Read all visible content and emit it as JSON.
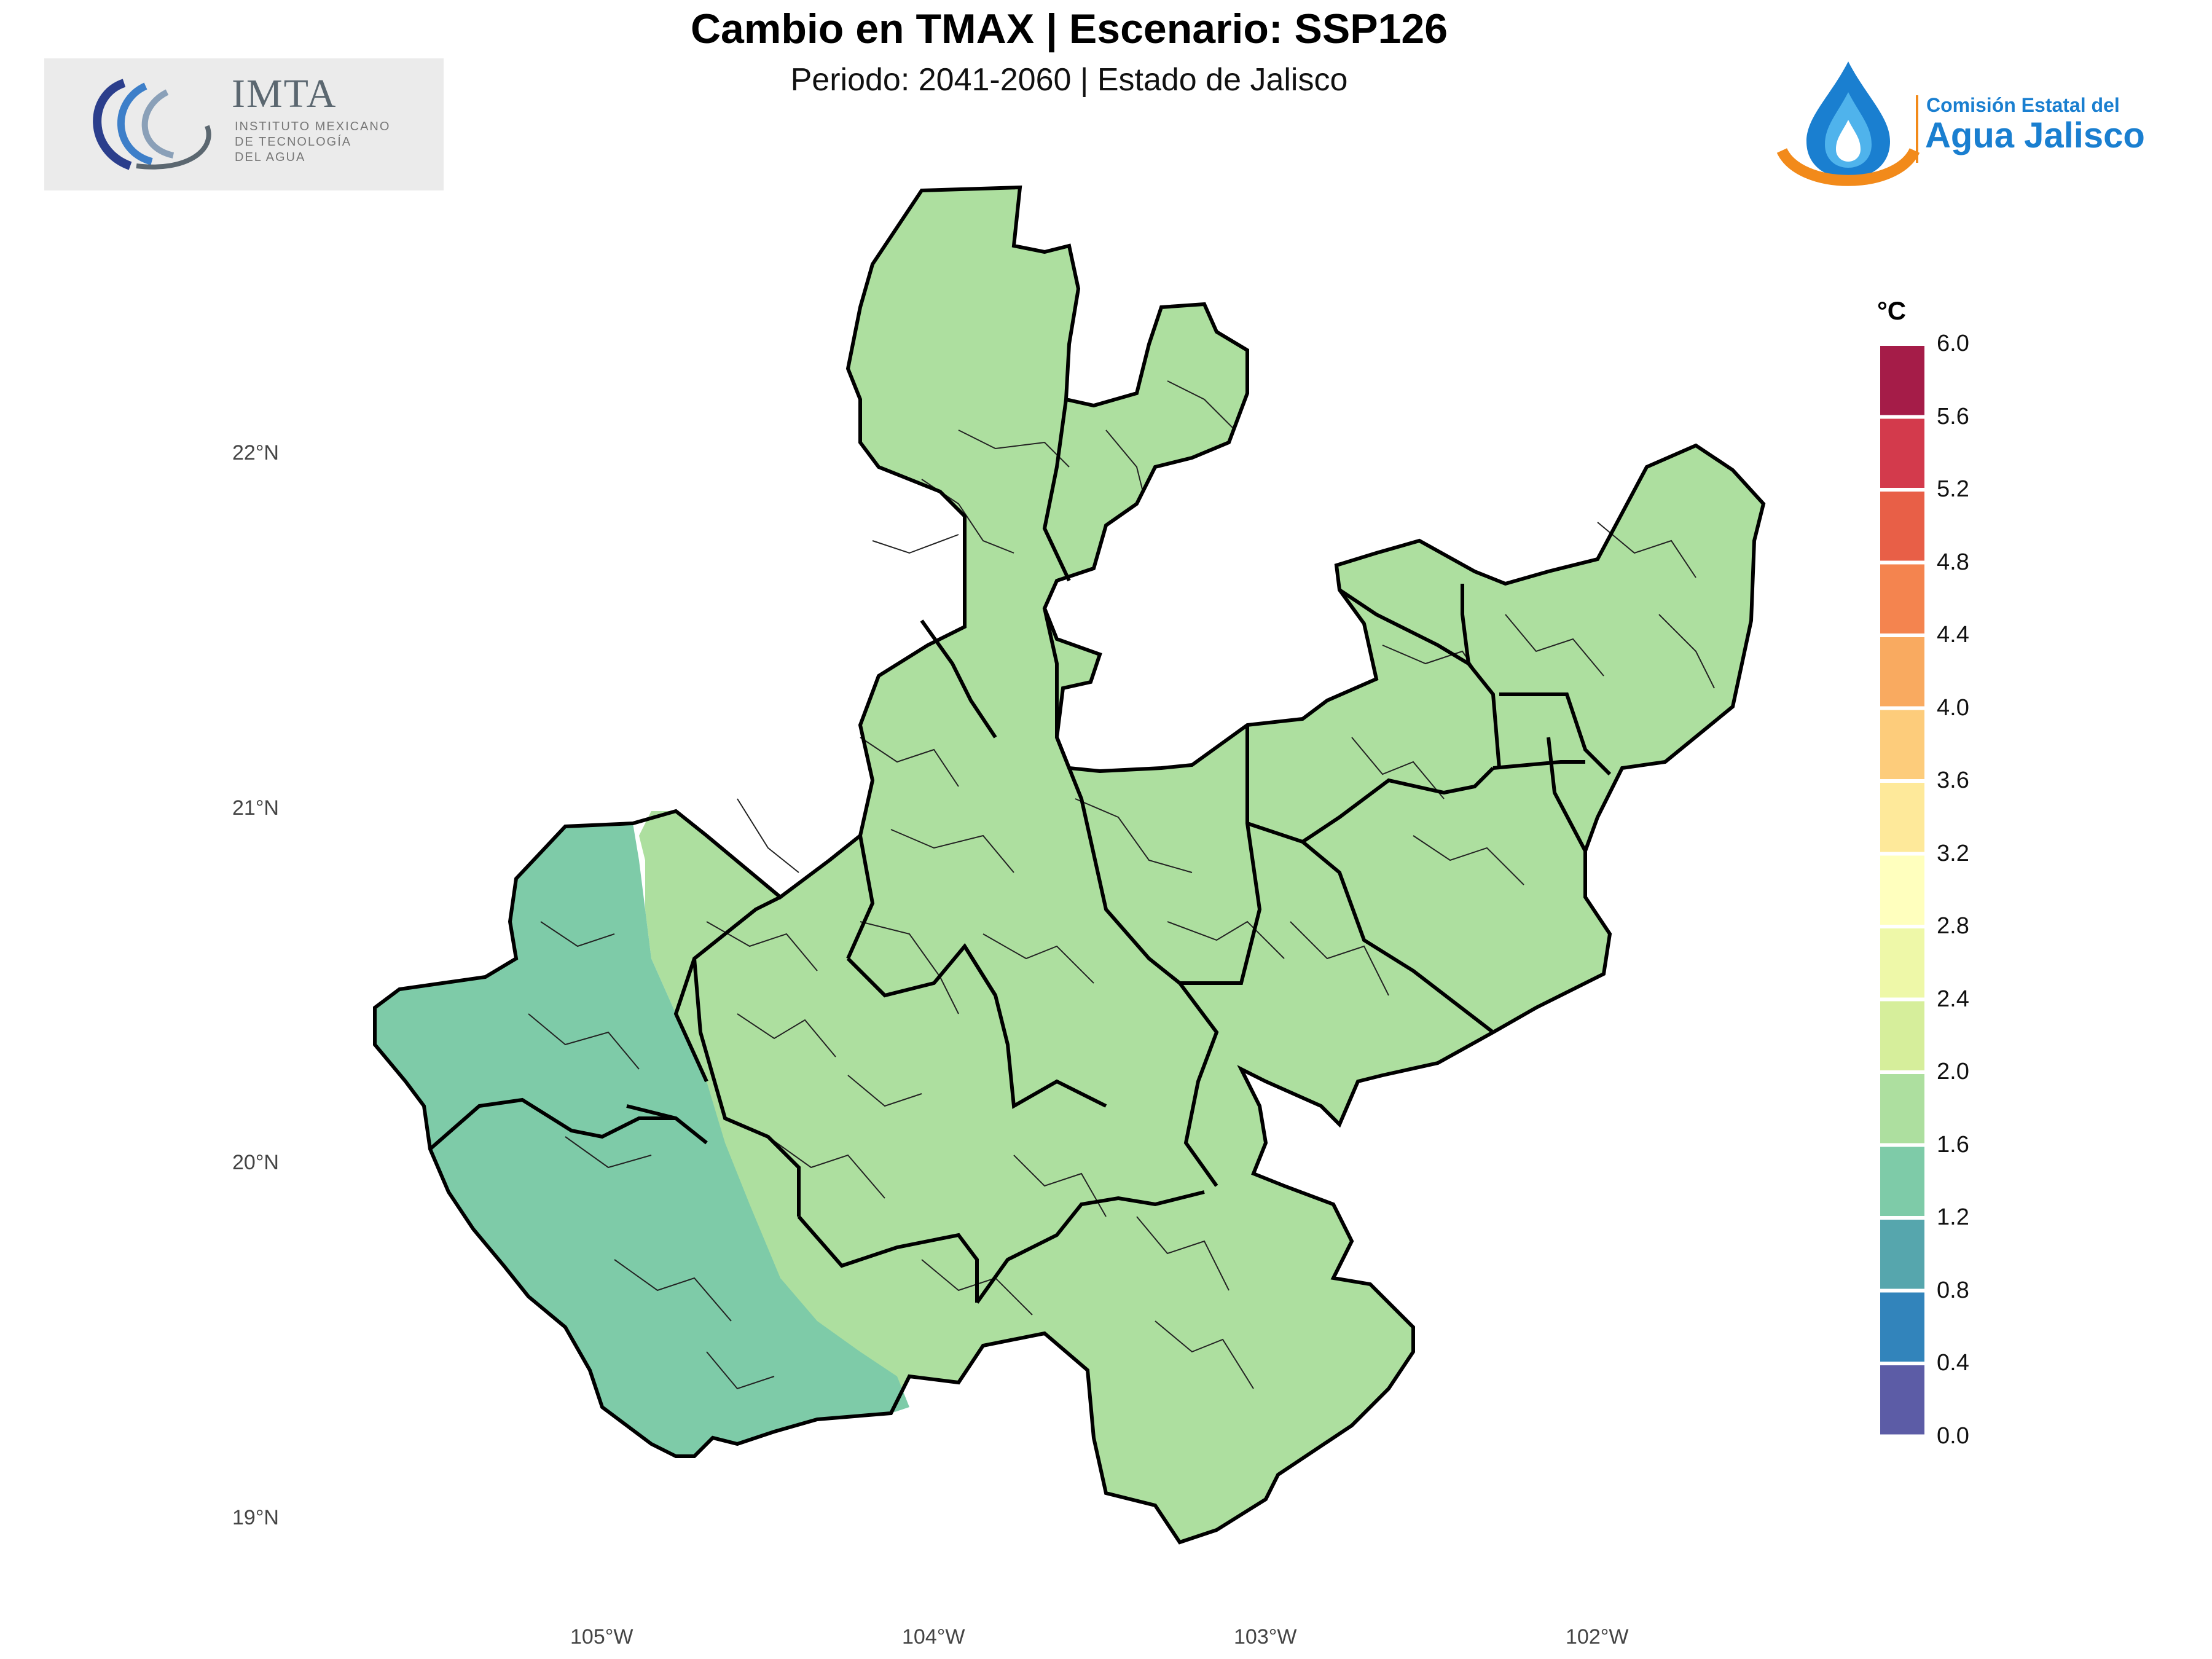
{
  "header": {
    "title": "Cambio en TMAX | Escenario: SSP126",
    "subtitle": "Periodo: 2041-2060 | Estado de Jalisco"
  },
  "logos": {
    "imta": {
      "name": "IMTA",
      "line1": "INSTITUTO MEXICANO",
      "line2": "DE TECNOLOGÍA",
      "line3": "DEL AGUA"
    },
    "ceaj": {
      "line1": "Comisión Estatal del",
      "line2": "Agua Jalisco"
    }
  },
  "map": {
    "region": "Estado de Jalisco",
    "lat_labels": [
      "22°N",
      "21°N",
      "20°N",
      "19°N"
    ],
    "lon_labels": [
      "105°W",
      "104°W",
      "103°W",
      "102°W"
    ],
    "fills": {
      "range_1_2_to_1_6": "#7ecba8",
      "range_1_6_to_2_0": "#addf9f"
    }
  },
  "legend": {
    "title": "°C",
    "ticks": [
      "6.0",
      "5.6",
      "5.2",
      "4.8",
      "4.4",
      "4.0",
      "3.6",
      "3.2",
      "2.8",
      "2.4",
      "2.0",
      "1.6",
      "1.2",
      "0.8",
      "0.4",
      "0.0"
    ],
    "colors": [
      "#a51c48",
      "#d33a4c",
      "#e85f47",
      "#f4844f",
      "#f9aa60",
      "#fdcc7b",
      "#fee99a",
      "#ffffbe",
      "#eef8a8",
      "#d6ee9b",
      "#addf9f",
      "#7ecba8",
      "#56a6ad",
      "#3284bb",
      "#5c5ca6"
    ]
  }
}
